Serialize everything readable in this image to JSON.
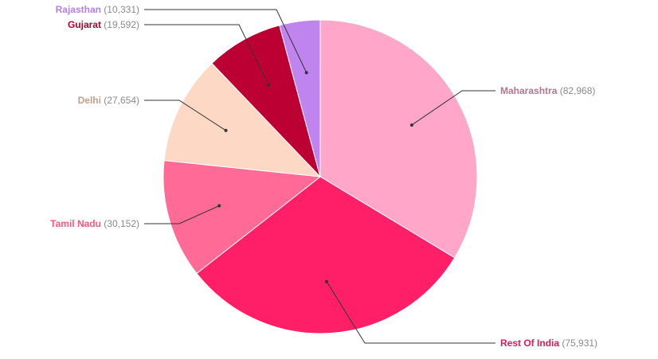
{
  "chart_data": {
    "type": "pie",
    "title": "",
    "slices": [
      {
        "label": "Maharashtra",
        "value": 82968,
        "value_text": "82,968",
        "color": "#ffa6c9",
        "label_color": "#b8738d"
      },
      {
        "label": "Rest Of India",
        "value": 75931,
        "value_text": "75,931",
        "color": "#ff1f68",
        "label_color": "#e0195c"
      },
      {
        "label": "Tamil Nadu",
        "value": 30152,
        "value_text": "30,152",
        "color": "#ff6b96",
        "label_color": "#f4587f"
      },
      {
        "label": "Delhi",
        "value": 27654,
        "value_text": "27,654",
        "color": "#fdd8c5",
        "label_color": "#bfa08e"
      },
      {
        "label": "Gujarat",
        "value": 19592,
        "value_text": "19,592",
        "color": "#bd0033",
        "label_color": "#b3002f"
      },
      {
        "label": "Rajasthan",
        "value": 10331,
        "value_text": "10,331",
        "color": "#c084ee",
        "label_color": "#b57de6"
      }
    ],
    "value_text_color": "#8a8a8a",
    "start_angle": "top",
    "direction": "clockwise",
    "legend": "none"
  }
}
